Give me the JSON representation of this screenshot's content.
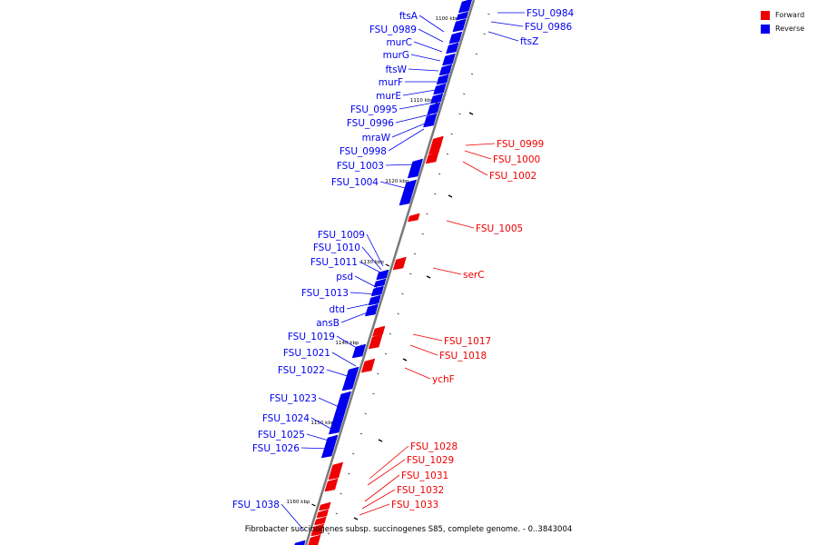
{
  "legend": [
    {
      "label": "Forward",
      "color": "#ee0000"
    },
    {
      "label": "Reverse",
      "color": "#0000ee"
    }
  ],
  "caption": "Fibrobacter succinogenes subsp. succinogenes S85, complete genome. - 0..3843004",
  "colors": {
    "forward": "#ee0000",
    "reverse": "#0000ee",
    "backbone": "#7a7a7a"
  },
  "kbp_labels": [
    "1100 kbp",
    "1110 kbp",
    "1120 kbp",
    "1130 kbp",
    "1140 kbp",
    "1150 kbp",
    "1160 kbp"
  ],
  "genes_reverse": [
    "ftsA",
    "FSU_0989",
    "murC",
    "murG",
    "ftsW",
    "murF",
    "murE",
    "FSU_0995",
    "FSU_0996",
    "mraW",
    "FSU_0998",
    "FSU_1003",
    "FSU_1004",
    "FSU_1009",
    "FSU_1010",
    "FSU_1011",
    "psd",
    "FSU_1013",
    "dtd",
    "ansB",
    "FSU_1019",
    "FSU_1021",
    "FSU_1022",
    "FSU_1023",
    "FSU_1024",
    "FSU_1025",
    "FSU_1026",
    "FSU_1038",
    "FSU_0984",
    "FSU_0986",
    "ftsZ"
  ],
  "genes_forward": [
    "FSU_0999",
    "FSU_1000",
    "FSU_1002",
    "FSU_1005",
    "serC",
    "FSU_1017",
    "FSU_1018",
    "ychF",
    "FSU_1028",
    "FSU_1029",
    "FSU_1031",
    "FSU_1032",
    "FSU_1033"
  ]
}
